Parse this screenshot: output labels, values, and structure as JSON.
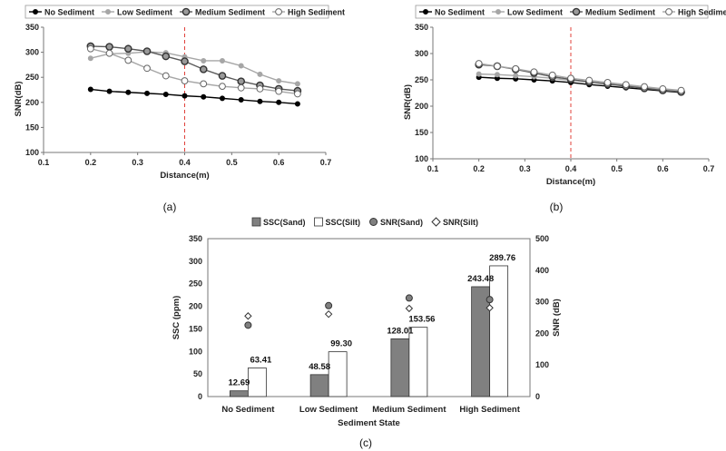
{
  "chart_data": [
    {
      "panel": "(a)",
      "type": "line",
      "xlabel": "Distance(m)",
      "ylabel": "SNR(dB)",
      "xlim": [
        0.1,
        0.7
      ],
      "ylim": [
        100,
        350
      ],
      "xticks": [
        "0.1",
        "0.2",
        "0.3",
        "0.4",
        "0.5",
        "0.6",
        "0.7"
      ],
      "yticks": [
        "100",
        "150",
        "200",
        "250",
        "300",
        "350"
      ],
      "x": [
        0.2,
        0.24,
        0.28,
        0.32,
        0.36,
        0.4,
        0.44,
        0.48,
        0.52,
        0.56,
        0.6,
        0.64
      ],
      "reference_line_x": 0.4,
      "series": [
        {
          "name": "No Sediment",
          "color": "#000000",
          "marker": "dot",
          "values": [
            226,
            222,
            220,
            218,
            216,
            213,
            211,
            208,
            205,
            202,
            200,
            197
          ]
        },
        {
          "name": "Low Sediment",
          "color": "#a6a6a6",
          "marker": "dot",
          "values": [
            288,
            297,
            298,
            301,
            299,
            291,
            283,
            283,
            273,
            256,
            243,
            237
          ]
        },
        {
          "name": "Medium Sediment",
          "color": "#595959",
          "marker": "ring",
          "values": [
            312,
            311,
            307,
            302,
            292,
            282,
            266,
            253,
            242,
            234,
            227,
            223
          ]
        },
        {
          "name": "High Sediment",
          "color": "#a6a6a6",
          "marker": "open",
          "values": [
            307,
            298,
            284,
            268,
            253,
            243,
            237,
            232,
            229,
            227,
            222,
            217
          ]
        }
      ]
    },
    {
      "panel": "(b)",
      "type": "line",
      "xlabel": "Distance(m)",
      "ylabel": "SNR(dB)",
      "xlim": [
        0.1,
        0.7
      ],
      "ylim": [
        100,
        350
      ],
      "xticks": [
        "0.1",
        "0.2",
        "0.3",
        "0.4",
        "0.5",
        "0.6",
        "0.7"
      ],
      "yticks": [
        "100",
        "150",
        "200",
        "250",
        "300",
        "350"
      ],
      "x": [
        0.2,
        0.24,
        0.28,
        0.32,
        0.36,
        0.4,
        0.44,
        0.48,
        0.52,
        0.56,
        0.6,
        0.64
      ],
      "reference_line_x": 0.4,
      "series": [
        {
          "name": "No Sediment",
          "color": "#000000",
          "marker": "dot",
          "values": [
            255,
            253,
            252,
            250,
            248,
            245,
            241,
            238,
            235,
            232,
            229,
            226
          ]
        },
        {
          "name": "Low Sediment",
          "color": "#a6a6a6",
          "marker": "dot",
          "values": [
            261,
            260,
            258,
            256,
            253,
            249,
            246,
            243,
            239,
            236,
            232,
            229
          ]
        },
        {
          "name": "Medium Sediment",
          "color": "#595959",
          "marker": "ring",
          "values": [
            279,
            276,
            270,
            263,
            256,
            251,
            246,
            242,
            238,
            234,
            230,
            227
          ]
        },
        {
          "name": "High Sediment",
          "color": "#a6a6a6",
          "marker": "open",
          "values": [
            281,
            276,
            271,
            265,
            259,
            253,
            249,
            245,
            241,
            237,
            233,
            230
          ]
        }
      ]
    },
    {
      "panel": "(c)",
      "type": "bar",
      "xlabel": "Sediment State",
      "ylabel": "SSC (ppm)",
      "y2label": "SNR (dB)",
      "ylim": [
        0,
        350
      ],
      "y2lim": [
        0,
        500
      ],
      "yticks": [
        "0",
        "50",
        "100",
        "150",
        "200",
        "250",
        "300",
        "350"
      ],
      "y2ticks": [
        "0",
        "100",
        "200",
        "300",
        "400",
        "500"
      ],
      "categories": [
        "No Sediment",
        "Low Sediment",
        "Medium Sediment",
        "High Sediment"
      ],
      "series": [
        {
          "name": "SSC(Sand)",
          "kind": "bar",
          "axis": "left",
          "color": "#808080",
          "values": [
            12.69,
            48.58,
            128.01,
            243.48
          ],
          "labels": [
            "12.69",
            "48.58",
            "128.01",
            "243.48"
          ]
        },
        {
          "name": "SSC(Silt)",
          "kind": "bar",
          "axis": "left",
          "color": "#ffffff",
          "values": [
            63.41,
            99.3,
            153.56,
            289.76
          ],
          "labels": [
            "63.41",
            "99.30",
            "153.56",
            "289.76"
          ]
        },
        {
          "name": "SNR(Sand)",
          "kind": "scatter",
          "axis": "right",
          "color": "#808080",
          "marker": "circle",
          "values": [
            226,
            288,
            312,
            307
          ]
        },
        {
          "name": "SNR(Silt)",
          "kind": "scatter",
          "axis": "right",
          "color": "#ffffff",
          "marker": "diamond",
          "values": [
            255,
            261,
            279,
            281
          ]
        }
      ]
    }
  ]
}
